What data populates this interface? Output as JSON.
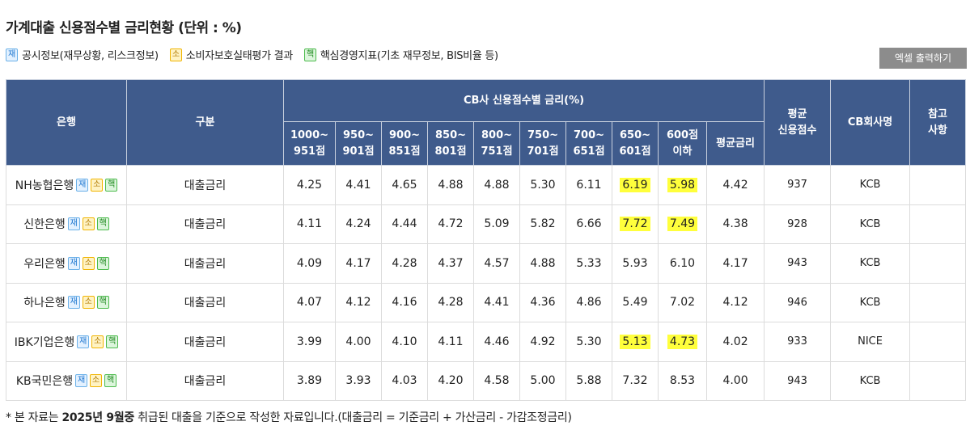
{
  "header": {
    "title": "가계대출 신용점수별 금리현황 (단위 : %)",
    "button": "엑셀 출력하기"
  },
  "legend": [
    {
      "badge": "재",
      "text": "공시정보(재무상황, 리스크정보)"
    },
    {
      "badge": "소",
      "text": "소비자보호실태평가 결과"
    },
    {
      "badge": "핵",
      "text": "핵심경영지표(기초 재무정보, BIS비율 등)"
    }
  ],
  "table": {
    "columns": [
      "은행",
      "구분",
      "CB사 신용점수별 금리(%)",
      "평균\n신용점수",
      "CB회사명",
      "참고\n사항"
    ],
    "subcolumns": [
      "1000~\n951점",
      "950~\n901점",
      "900~\n851점",
      "850~\n801점",
      "800~\n751점",
      "750~\n701점",
      "700~\n651점",
      "650~\n601점",
      "600점\n이하",
      "평균금리"
    ],
    "rows": [
      {
        "bank": "NH농협은행",
        "type": "대출금리",
        "rates": [
          "4.25",
          "4.41",
          "4.65",
          "4.88",
          "4.88",
          "5.30",
          "6.11",
          "6.19",
          "5.98",
          "4.42"
        ],
        "score": 937,
        "cb": "KCB",
        "highlighted": [
          7,
          8
        ]
      },
      {
        "bank": "신한은행",
        "type": "대출금리",
        "rates": [
          "4.11",
          "4.24",
          "4.44",
          "4.72",
          "5.09",
          "5.82",
          "6.66",
          "7.72",
          "7.49",
          "4.38"
        ],
        "score": 928,
        "cb": "KCB",
        "highlighted": [
          7,
          8
        ]
      },
      {
        "bank": "우리은행",
        "type": "대출금리",
        "rates": [
          "4.09",
          "4.17",
          "4.28",
          "4.37",
          "4.57",
          "4.88",
          "5.33",
          "5.93",
          "6.10",
          "4.17"
        ],
        "score": 943,
        "cb": "KCB",
        "highlighted": []
      },
      {
        "bank": "하나은행",
        "type": "대출금리",
        "rates": [
          "4.07",
          "4.12",
          "4.16",
          "4.28",
          "4.41",
          "4.36",
          "4.86",
          "5.49",
          "7.02",
          "4.12"
        ],
        "score": 946,
        "cb": "KCB",
        "highlighted": []
      },
      {
        "bank": "IBK기업은행",
        "type": "대출금리",
        "rates": [
          "3.99",
          "4.00",
          "4.10",
          "4.11",
          "4.46",
          "4.92",
          "5.30",
          "5.13",
          "4.73",
          "4.02"
        ],
        "score": 933,
        "cb": "NICE",
        "highlighted": [
          7,
          8
        ]
      },
      {
        "bank": "KB국민은행",
        "type": "대출금리",
        "rates": [
          "3.89",
          "3.93",
          "4.03",
          "4.20",
          "4.58",
          "5.00",
          "5.88",
          "7.32",
          "8.53",
          "4.00"
        ],
        "score": 943,
        "cb": "KCB",
        "highlighted": []
      }
    ]
  },
  "footnote": {
    "before": "* 본 자료는 ",
    "bold": "2025년 9월중",
    "after": " 취급된 대출을 기준으로 작성한 자료입니다.(대출금리 = 기준금리 + 가산금리 - 가감조정금리)"
  }
}
